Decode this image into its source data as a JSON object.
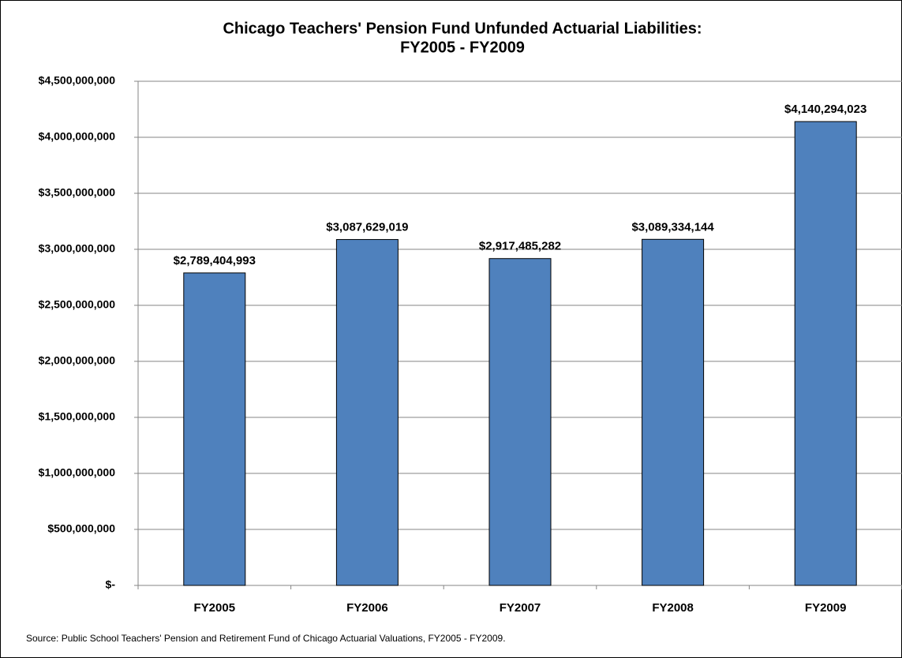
{
  "chart_data": {
    "type": "bar",
    "title": [
      "Chicago Teachers' Pension Fund Unfunded Actuarial Liabilities:",
      "FY2005 - FY2009"
    ],
    "categories": [
      "FY2005",
      "FY2006",
      "FY2007",
      "FY2008",
      "FY2009"
    ],
    "values": [
      2789404993,
      3087629019,
      2917485282,
      3089334144,
      4140294023
    ],
    "value_labels": [
      "$2,789,404,993",
      "$3,087,629,019",
      "$2,917,485,282",
      "$3,089,334,144",
      "$4,140,294,023"
    ],
    "color": "#4f81bd",
    "ylim": [
      0,
      4500000000
    ],
    "yticks": [
      {
        "value": 0,
        "label": "$-"
      },
      {
        "value": 500000000,
        "label": "$500,000,000"
      },
      {
        "value": 1000000000,
        "label": "$1,000,000,000"
      },
      {
        "value": 1500000000,
        "label": "$1,500,000,000"
      },
      {
        "value": 2000000000,
        "label": "$2,000,000,000"
      },
      {
        "value": 2500000000,
        "label": "$2,500,000,000"
      },
      {
        "value": 3000000000,
        "label": "$3,000,000,000"
      },
      {
        "value": 3500000000,
        "label": "$3,500,000,000"
      },
      {
        "value": 4000000000,
        "label": "$4,000,000,000"
      },
      {
        "value": 4500000000,
        "label": "$4,500,000,000"
      }
    ],
    "grid": true,
    "source": "Source: Public School Teachers' Pension and Retirement Fund of Chicago Actuarial Valuations, FY2005 - FY2009."
  }
}
